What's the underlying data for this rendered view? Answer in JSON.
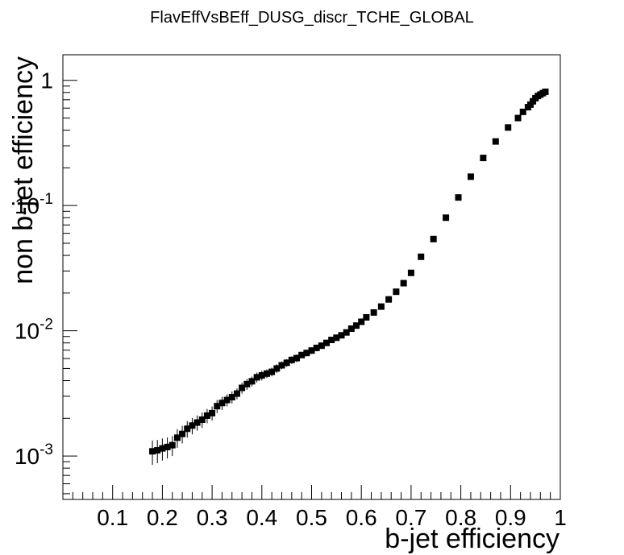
{
  "chart_data": {
    "type": "scatter",
    "title": "FlavEffVsBEff_DUSG_discr_TCHE_GLOBAL",
    "xlabel": "b-jet efficiency",
    "ylabel": "non b-jet efficiency",
    "xlim": [
      0.0,
      1.0
    ],
    "ylim": [
      0.00045,
      1.6
    ],
    "yscale": "log",
    "x_tick_labels": [
      "0.1",
      "0.2",
      "0.3",
      "0.4",
      "0.5",
      "0.6",
      "0.7",
      "0.8",
      "0.9",
      "1"
    ],
    "y_tick_labels": [
      {
        "base": "10",
        "exp": "-3",
        "value": 0.001
      },
      {
        "base": "10",
        "exp": "-2",
        "value": 0.01
      },
      {
        "base": "10",
        "exp": "-1",
        "value": 0.1
      },
      {
        "base": "1",
        "exp": "",
        "value": 1
      }
    ],
    "grid": false,
    "marker_color": "#000000",
    "series": [
      {
        "x": [
          0.18,
          0.19,
          0.2,
          0.21,
          0.22,
          0.23,
          0.24,
          0.25,
          0.26,
          0.27,
          0.28,
          0.29,
          0.3,
          0.31,
          0.32,
          0.33,
          0.34,
          0.35,
          0.36,
          0.37,
          0.38,
          0.39,
          0.4,
          0.41,
          0.42,
          0.43,
          0.44,
          0.45,
          0.46,
          0.47,
          0.48,
          0.49,
          0.5,
          0.51,
          0.52,
          0.53,
          0.54,
          0.55,
          0.56,
          0.57,
          0.58,
          0.59,
          0.6,
          0.61,
          0.625,
          0.64,
          0.655,
          0.67,
          0.685,
          0.7,
          0.72,
          0.745,
          0.77,
          0.795,
          0.82,
          0.845,
          0.87,
          0.895,
          0.915,
          0.925,
          0.935,
          0.94,
          0.945,
          0.95,
          0.955,
          0.96,
          0.965,
          0.97
        ],
        "y": [
          0.00109,
          0.00111,
          0.00115,
          0.00118,
          0.00122,
          0.0014,
          0.0015,
          0.00165,
          0.00175,
          0.00185,
          0.00195,
          0.0021,
          0.0022,
          0.0025,
          0.00265,
          0.0028,
          0.00295,
          0.00315,
          0.0035,
          0.00375,
          0.00395,
          0.00425,
          0.0044,
          0.00455,
          0.0047,
          0.005,
          0.0053,
          0.00555,
          0.00585,
          0.00605,
          0.0064,
          0.00665,
          0.00695,
          0.0073,
          0.0076,
          0.008,
          0.00845,
          0.0088,
          0.0092,
          0.0097,
          0.0104,
          0.011,
          0.0118,
          0.0128,
          0.014,
          0.0156,
          0.0178,
          0.0205,
          0.024,
          0.029,
          0.039,
          0.054,
          0.08,
          0.116,
          0.17,
          0.24,
          0.325,
          0.42,
          0.5,
          0.56,
          0.61,
          0.64,
          0.68,
          0.72,
          0.75,
          0.77,
          0.79,
          0.81
        ],
        "yerr_rel": [
          0.22,
          0.21,
          0.2,
          0.19,
          0.18,
          0.17,
          0.16,
          0.15,
          0.15,
          0.14,
          0.14,
          0.13,
          0.13,
          0.12,
          0.12,
          0.11,
          0.11,
          0.1,
          0.1,
          0.1,
          0.09,
          0.09,
          0.09,
          0.08,
          0.08,
          0.08,
          0.07,
          0.07,
          0.07,
          0.07,
          0.06,
          0.06,
          0.06,
          0.06,
          0.05,
          0.05,
          0.05,
          0.05,
          0.05,
          0.04,
          0.04,
          0.04,
          0.04,
          0.03,
          0.03,
          0.03,
          0.03,
          0.03,
          0.02,
          0.02,
          0.02,
          0.02,
          0.02,
          0.01,
          0.01,
          0.01,
          0.01,
          0.01,
          0.01,
          0.01,
          0.01,
          0.01,
          0.01,
          0.01,
          0.01,
          0.01,
          0.01,
          0.01
        ]
      }
    ]
  }
}
